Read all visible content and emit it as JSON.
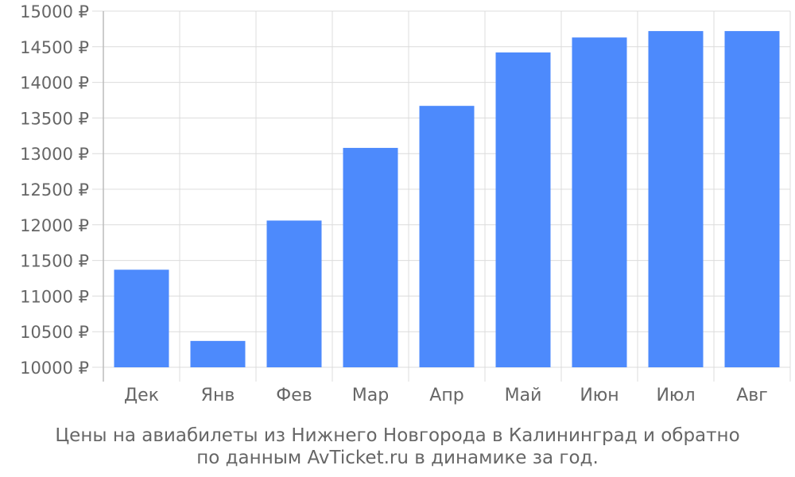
{
  "chart_data": {
    "type": "bar",
    "categories": [
      "Дек",
      "Янв",
      "Фев",
      "Мар",
      "Апр",
      "Май",
      "Июн",
      "Июл",
      "Авг"
    ],
    "values": [
      11370,
      10370,
      12060,
      13080,
      13670,
      14420,
      14630,
      14720,
      14720
    ],
    "ylim": [
      10000,
      15000
    ],
    "yticks": [
      10000,
      10500,
      11000,
      11500,
      12000,
      12500,
      13000,
      13500,
      14000,
      14500,
      15000
    ],
    "ytick_suffix": " ₽",
    "grid": true,
    "bar_color": "#4d8afc",
    "caption": [
      "Цены на авиабилеты из Нижнего Новгорода в Калининград и обратно",
      "по данным AvTicket.ru в динамике за год."
    ]
  }
}
